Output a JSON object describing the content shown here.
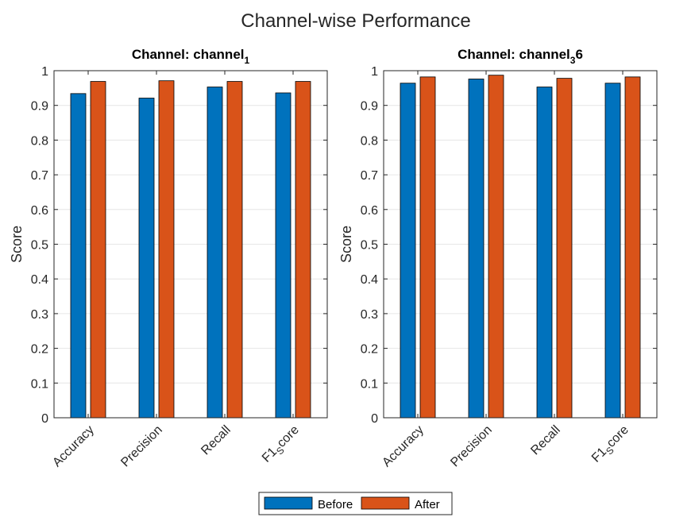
{
  "figure": {
    "title": "Channel-wise Performance"
  },
  "legend": {
    "entries": [
      {
        "label": "Before",
        "color": "#0072BD"
      },
      {
        "label": "After",
        "color": "#D95319"
      }
    ],
    "placement": "bottom-center"
  },
  "chart_data": [
    {
      "type": "bar",
      "title": {
        "main": "Channel: channel",
        "sub": "1"
      },
      "ylabel": "Score",
      "xlabel": "",
      "ylim": [
        0,
        1
      ],
      "yticks": [
        "0",
        "0.1",
        "0.2",
        "0.3",
        "0.4",
        "0.5",
        "0.6",
        "0.7",
        "0.8",
        "0.9",
        "1"
      ],
      "grid": "y-major",
      "categories": [
        {
          "main": "Accuracy",
          "sub": ""
        },
        {
          "main": "Precision",
          "sub": ""
        },
        {
          "main": "Recall",
          "sub": ""
        },
        {
          "main": "F1",
          "sub": "S",
          "tail": "core"
        }
      ],
      "series": [
        {
          "name": "Before",
          "color": "#0072BD",
          "values": [
            0.934,
            0.921,
            0.953,
            0.936
          ]
        },
        {
          "name": "After",
          "color": "#D95319",
          "values": [
            0.969,
            0.971,
            0.969,
            0.969
          ]
        }
      ]
    },
    {
      "type": "bar",
      "title": {
        "main": "Channel: channel",
        "sub": "3",
        "tail": "6"
      },
      "ylabel": "Score",
      "xlabel": "",
      "ylim": [
        0,
        1
      ],
      "yticks": [
        "0",
        "0.1",
        "0.2",
        "0.3",
        "0.4",
        "0.5",
        "0.6",
        "0.7",
        "0.8",
        "0.9",
        "1"
      ],
      "grid": "y-major",
      "categories": [
        {
          "main": "Accuracy",
          "sub": ""
        },
        {
          "main": "Precision",
          "sub": ""
        },
        {
          "main": "Recall",
          "sub": ""
        },
        {
          "main": "F1",
          "sub": "S",
          "tail": "core"
        }
      ],
      "series": [
        {
          "name": "Before",
          "color": "#0072BD",
          "values": [
            0.964,
            0.976,
            0.953,
            0.964
          ]
        },
        {
          "name": "After",
          "color": "#D95319",
          "values": [
            0.982,
            0.987,
            0.978,
            0.982
          ]
        }
      ]
    }
  ]
}
